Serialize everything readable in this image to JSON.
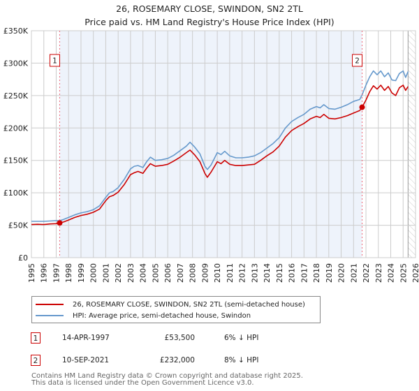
{
  "title_line1": "26, ROSEMARY CLOSE, SWINDON, SN2 2TL",
  "title_line2": "Price paid vs. HM Land Registry's House Price Index (HPI)",
  "colors": {
    "price_paid": "#cc0000",
    "hpi": "#6699cc",
    "shade": "#eef3fb",
    "grid": "#cccccc",
    "marker_border": "#cc0000"
  },
  "chart_data": {
    "type": "line",
    "title": "26, ROSEMARY CLOSE, SWINDON, SN2 2TL — Price paid vs. HM Land Registry's House Price Index (HPI)",
    "xlabel": "",
    "ylabel": "",
    "xlim": [
      1995,
      2026
    ],
    "ylim": [
      0,
      350000
    ],
    "grid": true,
    "legend_position": "bottom",
    "x_ticks": [
      "1995",
      "1996",
      "1997",
      "1998",
      "1999",
      "2000",
      "2001",
      "2002",
      "2003",
      "2004",
      "2005",
      "2006",
      "2007",
      "2008",
      "2009",
      "2010",
      "2011",
      "2012",
      "2013",
      "2014",
      "2015",
      "2016",
      "2017",
      "2018",
      "2019",
      "2020",
      "2021",
      "2022",
      "2023",
      "2024",
      "2025",
      "2026"
    ],
    "y_ticks": [
      {
        "value": 0,
        "label": "£0"
      },
      {
        "value": 50000,
        "label": "£50K"
      },
      {
        "value": 100000,
        "label": "£100K"
      },
      {
        "value": 150000,
        "label": "£150K"
      },
      {
        "value": 200000,
        "label": "£200K"
      },
      {
        "value": 250000,
        "label": "£250K"
      },
      {
        "value": 300000,
        "label": "£300K"
      },
      {
        "value": 350000,
        "label": "£350K"
      }
    ],
    "series": [
      {
        "name": "26, ROSEMARY CLOSE, SWINDON, SN2 2TL (semi-detached house)",
        "color": "#cc0000",
        "x": [
          1995.0,
          1995.5,
          1996.0,
          1996.5,
          1997.0,
          1997.28,
          1997.6,
          1998.0,
          1998.5,
          1999.0,
          1999.5,
          2000.0,
          2000.5,
          2001.0,
          2001.3,
          2001.6,
          2002.0,
          2002.5,
          2003.0,
          2003.3,
          2003.6,
          2004.0,
          2004.3,
          2004.6,
          2005.0,
          2005.5,
          2006.0,
          2006.5,
          2007.0,
          2007.5,
          2007.8,
          2008.2,
          2008.6,
          2009.0,
          2009.2,
          2009.5,
          2010.0,
          2010.3,
          2010.6,
          2011.0,
          2011.5,
          2012.0,
          2012.5,
          2013.0,
          2013.5,
          2014.0,
          2014.5,
          2015.0,
          2015.5,
          2016.0,
          2016.5,
          2017.0,
          2017.5,
          2018.0,
          2018.3,
          2018.6,
          2019.0,
          2019.5,
          2020.0,
          2020.5,
          2021.0,
          2021.5,
          2021.69,
          2022.0,
          2022.3,
          2022.6,
          2022.9,
          2023.2,
          2023.5,
          2023.8,
          2024.1,
          2024.4,
          2024.7,
          2025.0,
          2025.2,
          2025.4
        ],
        "values": [
          51000,
          51500,
          51000,
          52000,
          52500,
          53500,
          55000,
          58000,
          62000,
          65000,
          67000,
          70000,
          75000,
          88000,
          94000,
          96000,
          101000,
          113000,
          128000,
          131000,
          133000,
          130000,
          138000,
          145000,
          141000,
          142000,
          144000,
          149000,
          155000,
          162000,
          166000,
          158000,
          148000,
          130000,
          124000,
          132000,
          148000,
          145000,
          150000,
          144000,
          142000,
          142000,
          143000,
          144000,
          150000,
          157000,
          163000,
          172000,
          186000,
          196000,
          202000,
          207000,
          214000,
          218000,
          216000,
          221000,
          215000,
          214000,
          216000,
          219000,
          223000,
          227000,
          232000,
          243000,
          256000,
          265000,
          260000,
          266000,
          258000,
          264000,
          254000,
          250000,
          262000,
          266000,
          258000,
          264000
        ]
      },
      {
        "name": "HPI: Average price, semi-detached house, Swindon",
        "color": "#6699cc",
        "x": [
          1995.0,
          1995.5,
          1996.0,
          1996.5,
          1997.0,
          1997.28,
          1997.6,
          1998.0,
          1998.5,
          1999.0,
          1999.5,
          2000.0,
          2000.5,
          2001.0,
          2001.3,
          2001.6,
          2002.0,
          2002.5,
          2003.0,
          2003.3,
          2003.6,
          2004.0,
          2004.3,
          2004.6,
          2005.0,
          2005.5,
          2006.0,
          2006.5,
          2007.0,
          2007.5,
          2007.8,
          2008.2,
          2008.6,
          2009.0,
          2009.2,
          2009.5,
          2010.0,
          2010.3,
          2010.6,
          2011.0,
          2011.5,
          2012.0,
          2012.5,
          2013.0,
          2013.5,
          2014.0,
          2014.5,
          2015.0,
          2015.5,
          2016.0,
          2016.5,
          2017.0,
          2017.5,
          2018.0,
          2018.3,
          2018.6,
          2019.0,
          2019.5,
          2020.0,
          2020.5,
          2021.0,
          2021.5,
          2021.69,
          2022.0,
          2022.3,
          2022.6,
          2022.9,
          2023.2,
          2023.5,
          2023.8,
          2024.1,
          2024.4,
          2024.7,
          2025.0,
          2025.2,
          2025.4
        ],
        "values": [
          56000,
          56000,
          56000,
          56500,
          57000,
          57000,
          59000,
          62000,
          66000,
          69000,
          71000,
          74000,
          80000,
          93000,
          100000,
          102000,
          108000,
          121000,
          137000,
          141000,
          142000,
          139000,
          148000,
          155000,
          150000,
          151000,
          153000,
          158000,
          165000,
          172000,
          178000,
          170000,
          160000,
          141000,
          136000,
          143000,
          162000,
          159000,
          164000,
          157000,
          154000,
          154000,
          155000,
          157000,
          162000,
          169000,
          176000,
          185000,
          200000,
          210000,
          216000,
          221000,
          229000,
          233000,
          231000,
          236000,
          230000,
          229000,
          232000,
          236000,
          241000,
          244000,
          251000,
          266000,
          279000,
          288000,
          282000,
          288000,
          279000,
          285000,
          274000,
          273000,
          284000,
          288000,
          278000,
          287000
        ]
      }
    ],
    "sales": [
      {
        "id": "1",
        "x": 1997.28,
        "value": 53500
      },
      {
        "id": "2",
        "x": 2021.69,
        "value": 232000
      }
    ],
    "shaded_range": [
      1997.28,
      2021.69
    ],
    "hatched_from": 2025.4
  },
  "legend": {
    "items": [
      {
        "label": "26, ROSEMARY CLOSE, SWINDON, SN2 2TL (semi-detached house)",
        "color": "#cc0000"
      },
      {
        "label": "HPI: Average price, semi-detached house, Swindon",
        "color": "#6699cc"
      }
    ]
  },
  "transactions": [
    {
      "id": "1",
      "date": "14-APR-1997",
      "price": "£53,500",
      "hpi": "6% ↓ HPI"
    },
    {
      "id": "2",
      "date": "10-SEP-2021",
      "price": "£232,000",
      "hpi": "8% ↓ HPI"
    }
  ],
  "footer": {
    "line1": "Contains HM Land Registry data © Crown copyright and database right 2025.",
    "line2": "This data is licensed under the Open Government Licence v3.0."
  }
}
